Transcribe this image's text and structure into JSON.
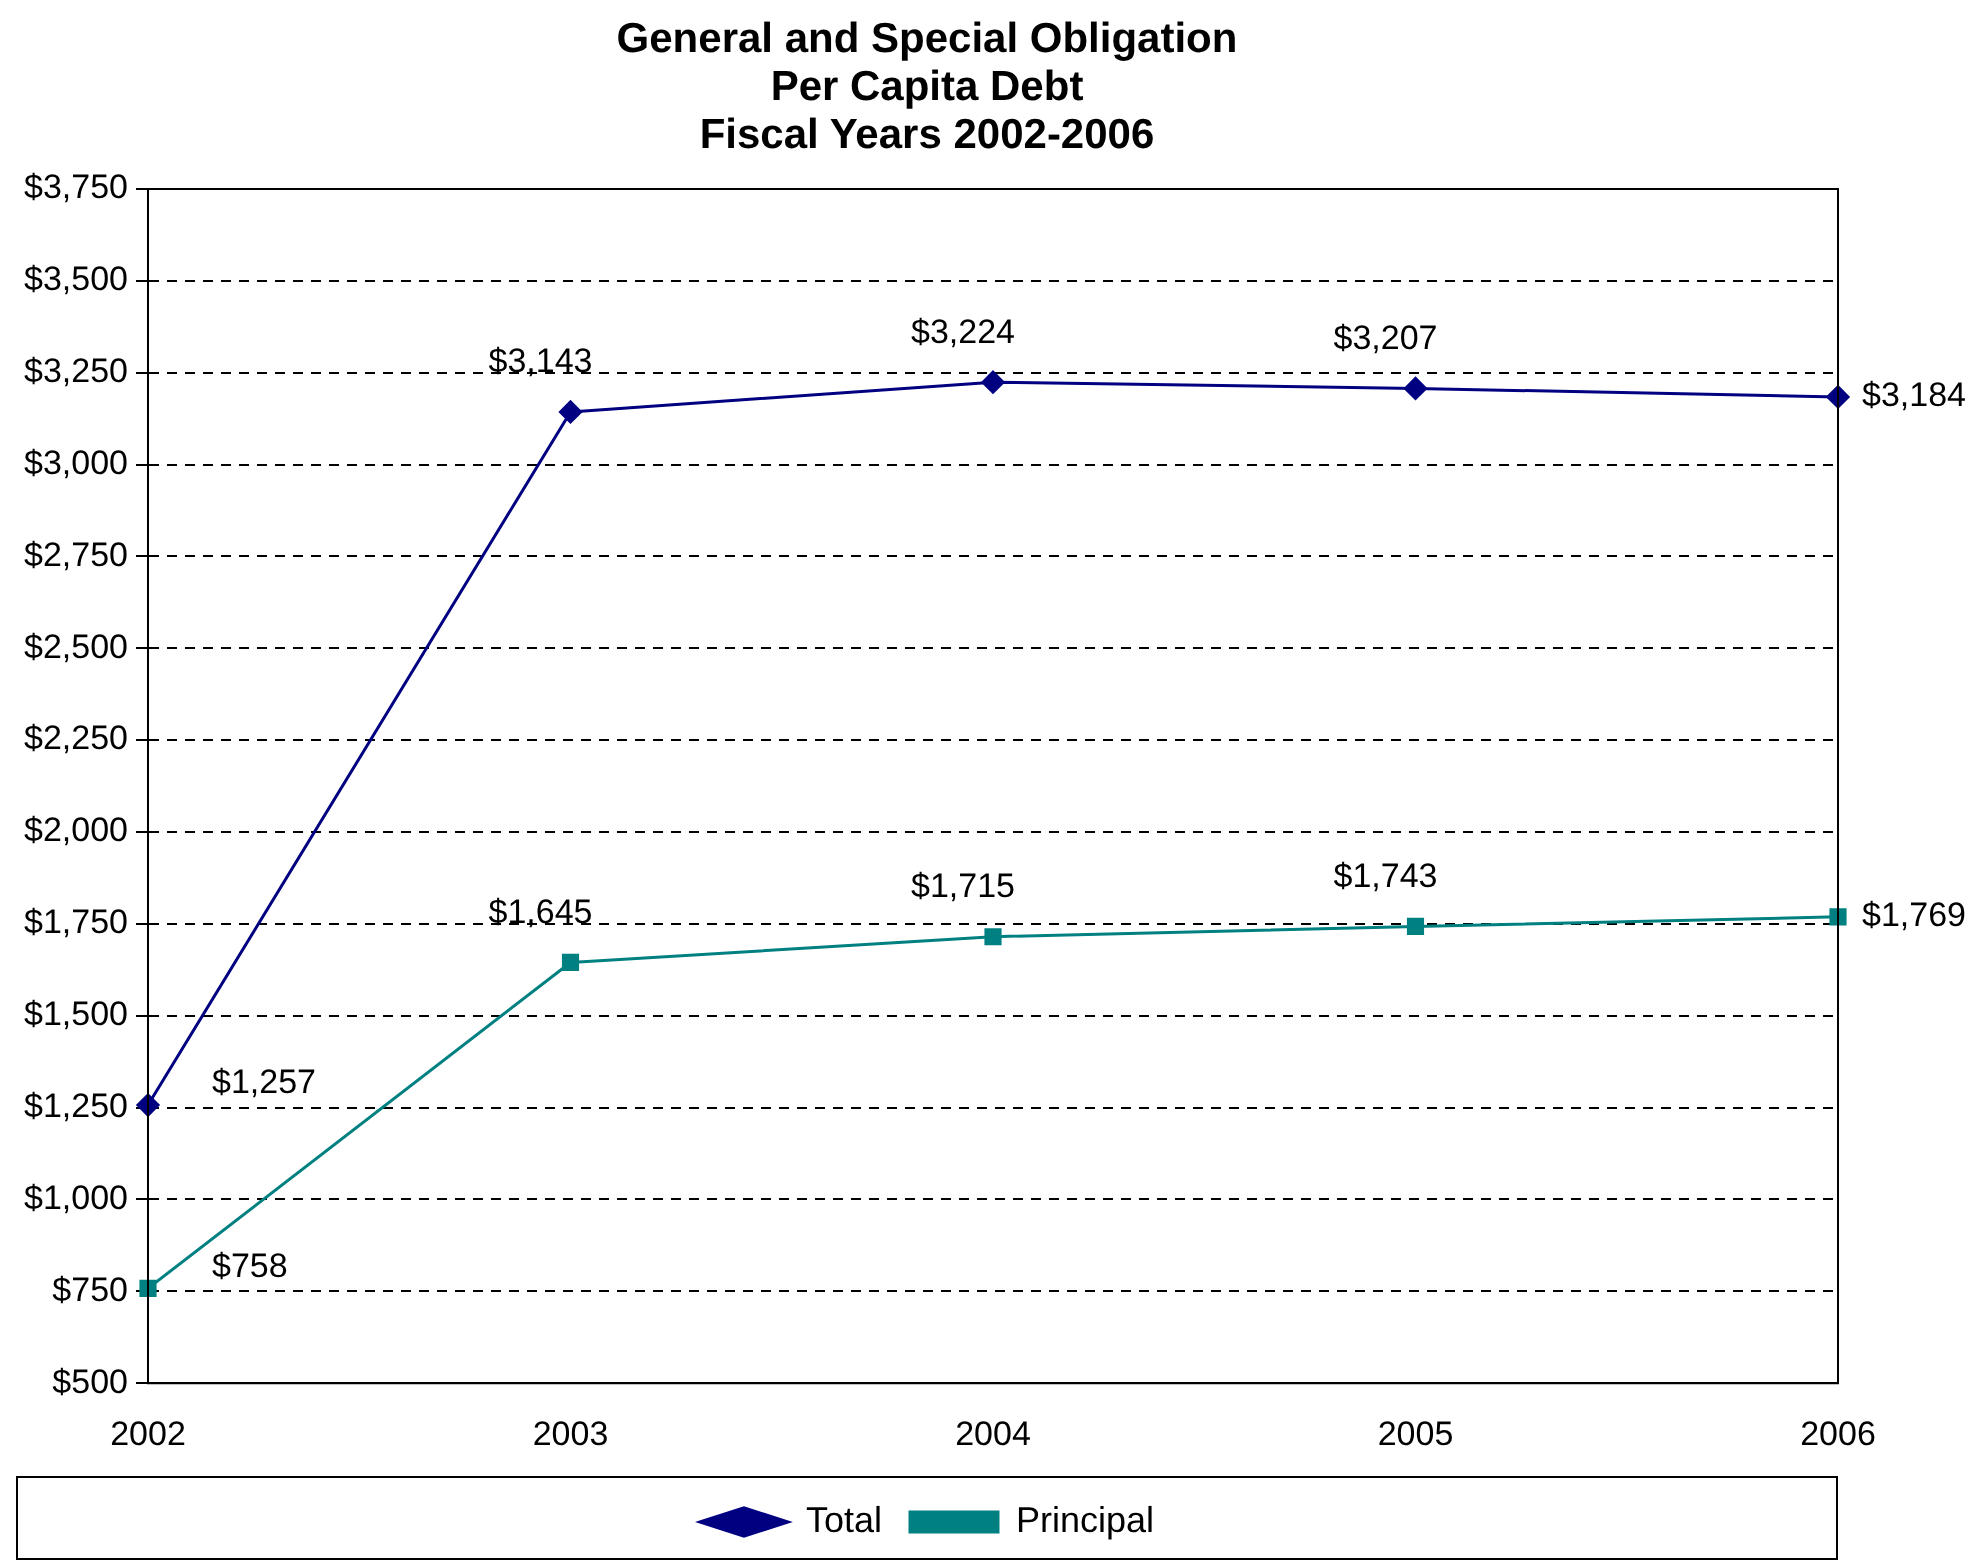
{
  "chart_data": {
    "type": "line",
    "title": [
      "General and Special Obligation",
      "Per Capita Debt",
      "Fiscal Years 2002-2006"
    ],
    "categories": [
      "2002",
      "2003",
      "2004",
      "2005",
      "2006"
    ],
    "series": [
      {
        "name": "Total",
        "color": "#000080",
        "values": [
          1257,
          3143,
          3224,
          3207,
          3184
        ],
        "value_labels": [
          "$1,257",
          "$3,143",
          "$3,224",
          "$3,207",
          "$3,184"
        ],
        "marker": "diamond"
      },
      {
        "name": "Principal",
        "color": "#008080",
        "values": [
          758,
          1645,
          1715,
          1743,
          1769
        ],
        "value_labels": [
          "$758",
          "$1,645",
          "$1,715",
          "$1,743",
          "$1,769"
        ],
        "marker": "square"
      }
    ],
    "ylim": [
      500,
      3750
    ],
    "yticks": [
      {
        "value": 500,
        "label": "$500"
      },
      {
        "value": 750,
        "label": "$750"
      },
      {
        "value": 1000,
        "label": "$1,000"
      },
      {
        "value": 1250,
        "label": "$1,250"
      },
      {
        "value": 1500,
        "label": "$1,500"
      },
      {
        "value": 1750,
        "label": "$1,750"
      },
      {
        "value": 2000,
        "label": "$2,000"
      },
      {
        "value": 2250,
        "label": "$2,250"
      },
      {
        "value": 2500,
        "label": "$2,500"
      },
      {
        "value": 2750,
        "label": "$2,750"
      },
      {
        "value": 3000,
        "label": "$3,000"
      },
      {
        "value": 3250,
        "label": "$3,250"
      },
      {
        "value": 3500,
        "label": "$3,500"
      },
      {
        "value": 3750,
        "label": "$3,750"
      }
    ],
    "grid": "y",
    "legend": "bottom",
    "line_style": "solid"
  }
}
